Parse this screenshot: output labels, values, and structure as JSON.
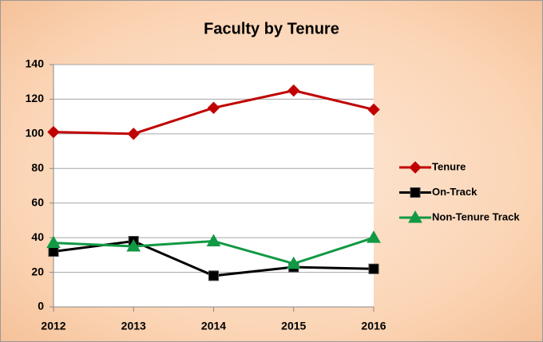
{
  "chart_data": {
    "type": "line",
    "title": "Faculty by Tenure",
    "x": [
      2012,
      2013,
      2014,
      2015,
      2016
    ],
    "xlim": [
      2012,
      2016
    ],
    "xticks": [
      2012,
      2013,
      2014,
      2015,
      2016
    ],
    "ylim": [
      0,
      140
    ],
    "yticks": [
      0,
      20,
      40,
      60,
      80,
      100,
      120,
      140
    ],
    "grid": true,
    "legend": "right",
    "series": [
      {
        "name": "Tenure",
        "color": "#c00000",
        "marker": "diamond",
        "values": [
          101,
          100,
          115,
          125,
          114
        ]
      },
      {
        "name": "On-Track",
        "color": "#000000",
        "marker": "square",
        "values": [
          32,
          38,
          18,
          23,
          22
        ]
      },
      {
        "name": "Non-Tenure Track",
        "color": "#119944",
        "marker": "triangle",
        "values": [
          37,
          35,
          38,
          25,
          40
        ]
      }
    ]
  }
}
